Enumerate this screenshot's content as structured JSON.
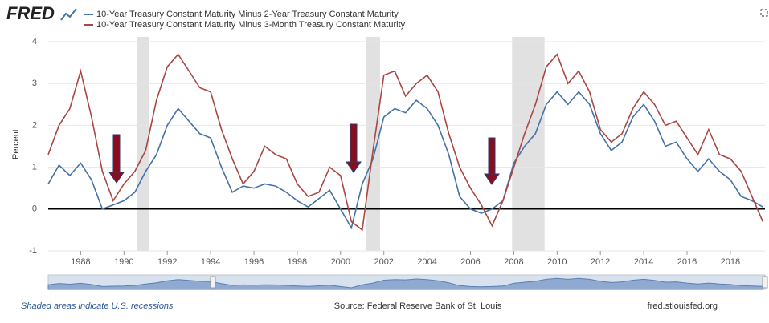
{
  "chart_data": {
    "type": "line",
    "logo": "FRED",
    "y_label": "Percent",
    "footer_left": "Shaded areas indicate U.S. recessions",
    "footer_center": "Source: Federal Reserve Bank of St. Louis",
    "footer_right": "fred.stlouisfed.org",
    "x": [
      1986.5,
      1987.0,
      1987.5,
      1988.0,
      1988.5,
      1989.0,
      1989.5,
      1990.0,
      1990.5,
      1991.0,
      1991.5,
      1992.0,
      1992.5,
      1993.0,
      1993.5,
      1994.0,
      1994.5,
      1995.0,
      1995.5,
      1996.0,
      1996.5,
      1997.0,
      1997.5,
      1998.0,
      1998.5,
      1999.0,
      1999.5,
      2000.0,
      2000.5,
      2001.0,
      2001.5,
      2002.0,
      2002.5,
      2003.0,
      2003.5,
      2004.0,
      2004.5,
      2005.0,
      2005.5,
      2006.0,
      2006.5,
      2007.0,
      2007.5,
      2008.0,
      2008.5,
      2009.0,
      2009.5,
      2010.0,
      2010.5,
      2011.0,
      2011.5,
      2012.0,
      2012.5,
      2013.0,
      2013.5,
      2014.0,
      2014.5,
      2015.0,
      2015.5,
      2016.0,
      2016.5,
      2017.0,
      2017.5,
      2018.0,
      2018.5,
      2019.0,
      2019.5
    ],
    "series": [
      {
        "name": "10-Year Treasury Constant Maturity Minus 2-Year Treasury Constant Maturity",
        "color": "#4572a7",
        "values": [
          0.6,
          1.05,
          0.8,
          1.1,
          0.7,
          0.0,
          0.1,
          0.2,
          0.4,
          0.9,
          1.3,
          2.0,
          2.4,
          2.1,
          1.8,
          1.7,
          1.0,
          0.4,
          0.55,
          0.5,
          0.6,
          0.55,
          0.4,
          0.2,
          0.05,
          0.25,
          0.45,
          0.0,
          -0.45,
          0.6,
          1.2,
          2.2,
          2.4,
          2.3,
          2.6,
          2.4,
          2.0,
          1.3,
          0.3,
          0.0,
          -0.1,
          0.0,
          0.2,
          1.1,
          1.5,
          1.8,
          2.5,
          2.8,
          2.5,
          2.8,
          2.5,
          1.8,
          1.4,
          1.6,
          2.2,
          2.5,
          2.1,
          1.5,
          1.6,
          1.2,
          0.9,
          1.2,
          0.9,
          0.7,
          0.3,
          0.2,
          0.05
        ]
      },
      {
        "name": "10-Year Treasury Constant Maturity Minus 3-Month Treasury Constant Maturity",
        "color": "#aa4643",
        "values": [
          1.3,
          2.0,
          2.4,
          3.3,
          2.2,
          0.9,
          0.2,
          0.6,
          0.9,
          1.4,
          2.6,
          3.4,
          3.7,
          3.3,
          2.9,
          2.8,
          1.9,
          1.2,
          0.6,
          0.9,
          1.5,
          1.3,
          1.2,
          0.6,
          0.3,
          0.4,
          1.0,
          0.8,
          -0.3,
          -0.5,
          1.4,
          3.2,
          3.3,
          2.7,
          3.0,
          3.2,
          2.8,
          1.8,
          1.0,
          0.5,
          0.1,
          -0.4,
          0.2,
          1.0,
          1.8,
          2.5,
          3.4,
          3.7,
          3.0,
          3.3,
          2.8,
          1.9,
          1.6,
          1.8,
          2.4,
          2.8,
          2.5,
          2.0,
          2.1,
          1.7,
          1.3,
          1.9,
          1.3,
          1.2,
          0.9,
          0.3,
          -0.3
        ]
      }
    ],
    "recessions": [
      [
        1990.58,
        1991.17
      ],
      [
        2001.17,
        2001.83
      ],
      [
        2007.92,
        2009.42
      ]
    ],
    "recession_color": "#e1e1e1",
    "xlim": [
      1986.5,
      2019.6
    ],
    "xticks": [
      1988,
      1990,
      1992,
      1994,
      1996,
      1998,
      2000,
      2002,
      2004,
      2006,
      2008,
      2010,
      2012,
      2014,
      2016,
      2018
    ],
    "ylim": [
      -1,
      4
    ],
    "yticks": [
      -1,
      0,
      1,
      2,
      3,
      4
    ],
    "grid": true
  }
}
